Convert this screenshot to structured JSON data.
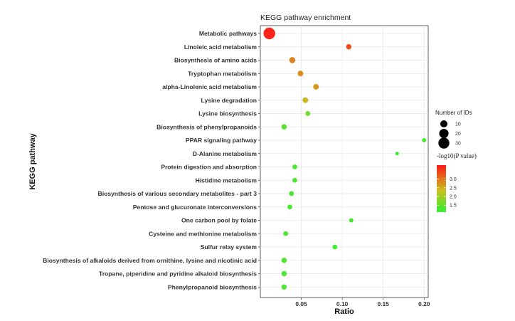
{
  "chart_data": {
    "type": "scatter",
    "title": "KEGG pathway enrichment",
    "xlabel": "Ratio",
    "ylabel": "KEGG pathway",
    "xlim": [
      0.0,
      0.205
    ],
    "xticks": [
      0.05,
      0.1,
      0.15,
      0.2
    ],
    "xtick_labels": [
      "0.05",
      "0.10",
      "0.15",
      "0.20"
    ],
    "grid": true,
    "categories": [
      "Metabolic pathways",
      "Linoleic acid metabolism",
      "Biosynthesis of amino acids",
      "Tryptophan metabolism",
      "alpha-Linolenic acid metabolism",
      "Lysine degradation",
      "Lysine biosynthesis",
      "Biosynthesis of phenylpropanoids",
      "PPAR signaling pathway",
      "D-Alanine metabolism",
      "Protein digestion and absorption",
      "Histidine metabolism",
      "Biosynthesis of various secondary metabolites - part 3",
      "Pentose and glucuronate interconversions",
      "One carbon pool by folate",
      "Cysteine and methionine metabolism",
      "Sulfur relay system",
      "Biosynthesis of alkaloids derived from ornithine, lysine and nicotinic acid",
      "Tropane, piperidine and pyridine alkaloid biosynthesis",
      "Phenylpropanoid biosynthesis"
    ],
    "ratio": [
      0.011,
      0.108,
      0.039,
      0.049,
      0.068,
      0.055,
      0.058,
      0.029,
      0.2,
      0.167,
      0.042,
      0.042,
      0.038,
      0.036,
      0.111,
      0.031,
      0.091,
      0.029,
      0.029,
      0.029
    ],
    "num_ids": [
      35,
      4,
      6,
      5,
      5,
      5,
      3,
      4,
      2,
      1,
      3,
      3,
      3,
      3,
      2,
      3,
      3,
      4,
      4,
      4
    ],
    "neg_log10_p": [
      3.7,
      3.4,
      2.9,
      2.8,
      2.7,
      2.4,
      1.6,
      1.4,
      1.3,
      1.2,
      1.3,
      1.3,
      1.3,
      1.3,
      1.2,
      1.3,
      1.2,
      1.3,
      1.3,
      1.3
    ],
    "size_legend": {
      "title": "Number of IDs",
      "values": [
        10,
        20,
        30
      ],
      "labels": [
        "10",
        "20",
        "30"
      ]
    },
    "color_legend": {
      "title": "-log10(P value)",
      "range": [
        1.1,
        3.8
      ],
      "ticks": [
        1.5,
        2.0,
        2.5,
        3.0
      ],
      "tick_labels": [
        "1.5",
        "2.0",
        "2.5",
        "3.0"
      ],
      "low_color": "#33ee33",
      "high_color": "#ff1a1a"
    },
    "legend_position": "right"
  }
}
